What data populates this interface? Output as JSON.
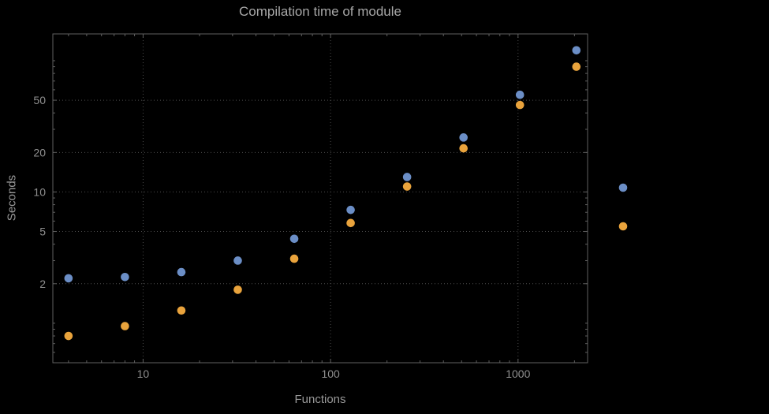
{
  "chart_data": {
    "type": "scatter",
    "title": "Compilation time of module",
    "xlabel": "Functions",
    "ylabel": "Seconds",
    "x_scale": "log",
    "y_scale": "log",
    "xlim": [
      3.3,
      2350
    ],
    "ylim": [
      0.5,
      160
    ],
    "x": [
      4,
      8,
      16,
      32,
      64,
      128,
      256,
      512,
      1024,
      2048
    ],
    "series": [
      {
        "name": "blue-series",
        "color": "#6b8ec6",
        "values": [
          2.2,
          2.25,
          2.45,
          3.0,
          4.4,
          7.3,
          13,
          26,
          55,
          120
        ]
      },
      {
        "name": "orange-series",
        "color": "#e9a33c",
        "values": [
          0.8,
          0.95,
          1.25,
          1.8,
          3.1,
          5.8,
          11,
          21.5,
          46,
          90
        ]
      }
    ],
    "x_gridlines": [
      10,
      100,
      1000
    ],
    "y_gridlines": [
      2,
      5,
      10,
      20,
      50
    ],
    "x_tick_labels": [
      "10",
      "100",
      "1000"
    ],
    "y_tick_labels": [
      "2",
      "5",
      "10",
      "20",
      "50"
    ],
    "grid_style": "dotted",
    "legend": {
      "position": "right-outside",
      "labels_visible": false,
      "markers": [
        {
          "series": "blue-series",
          "color": "#6b8ec6"
        },
        {
          "series": "orange-series",
          "color": "#e9a33c"
        }
      ]
    }
  },
  "colors": {
    "background": "#000000",
    "frame": "#606060",
    "grid": "#4d4d4d",
    "tick_labels": "#8f8f8f",
    "axis_labels": "#999999",
    "title": "#a8a8a8"
  }
}
